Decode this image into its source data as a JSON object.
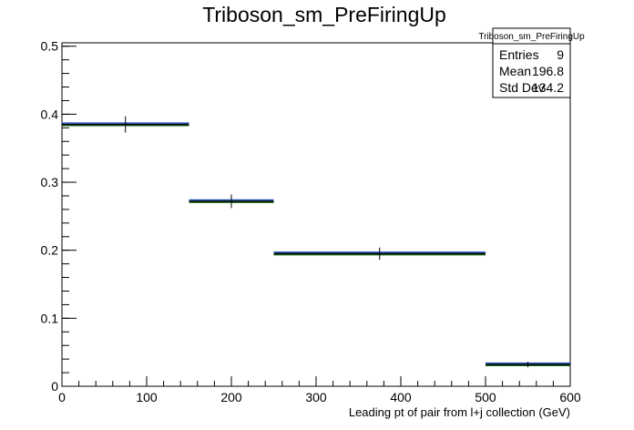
{
  "chart_data": {
    "type": "histogram",
    "title": "Triboson_sm_PreFiringUp",
    "xlabel": "Leading pt of pair from l+j collection (GeV)",
    "ylabel": "",
    "xlim": [
      0,
      600
    ],
    "ylim": [
      0,
      0.505
    ],
    "x_ticks": [
      0,
      100,
      200,
      300,
      400,
      500,
      600
    ],
    "y_ticks": [
      0,
      0.1,
      0.2,
      0.3,
      0.4,
      0.5
    ],
    "grid": false,
    "legend": "none",
    "bins": [
      {
        "low": 0,
        "high": 150,
        "center": 75,
        "value": 0.385,
        "err": 0.012
      },
      {
        "low": 150,
        "high": 250,
        "center": 200,
        "value": 0.272,
        "err": 0.01
      },
      {
        "low": 250,
        "high": 500,
        "center": 375,
        "value": 0.195,
        "err": 0.009
      },
      {
        "low": 500,
        "high": 600,
        "center": 550,
        "value": 0.032,
        "err": 0.004
      }
    ],
    "stats": {
      "name": "Triboson_sm_PreFiringUp",
      "entries_label": "Entries",
      "entries": "9",
      "mean_label": "Mean",
      "mean": "196.8",
      "stddev_label": "Std Dev",
      "stddev": "134.2"
    },
    "colors": {
      "line": "#000000",
      "fill_edge": "#1a6e1a",
      "blue": "#1f4fbf"
    }
  }
}
